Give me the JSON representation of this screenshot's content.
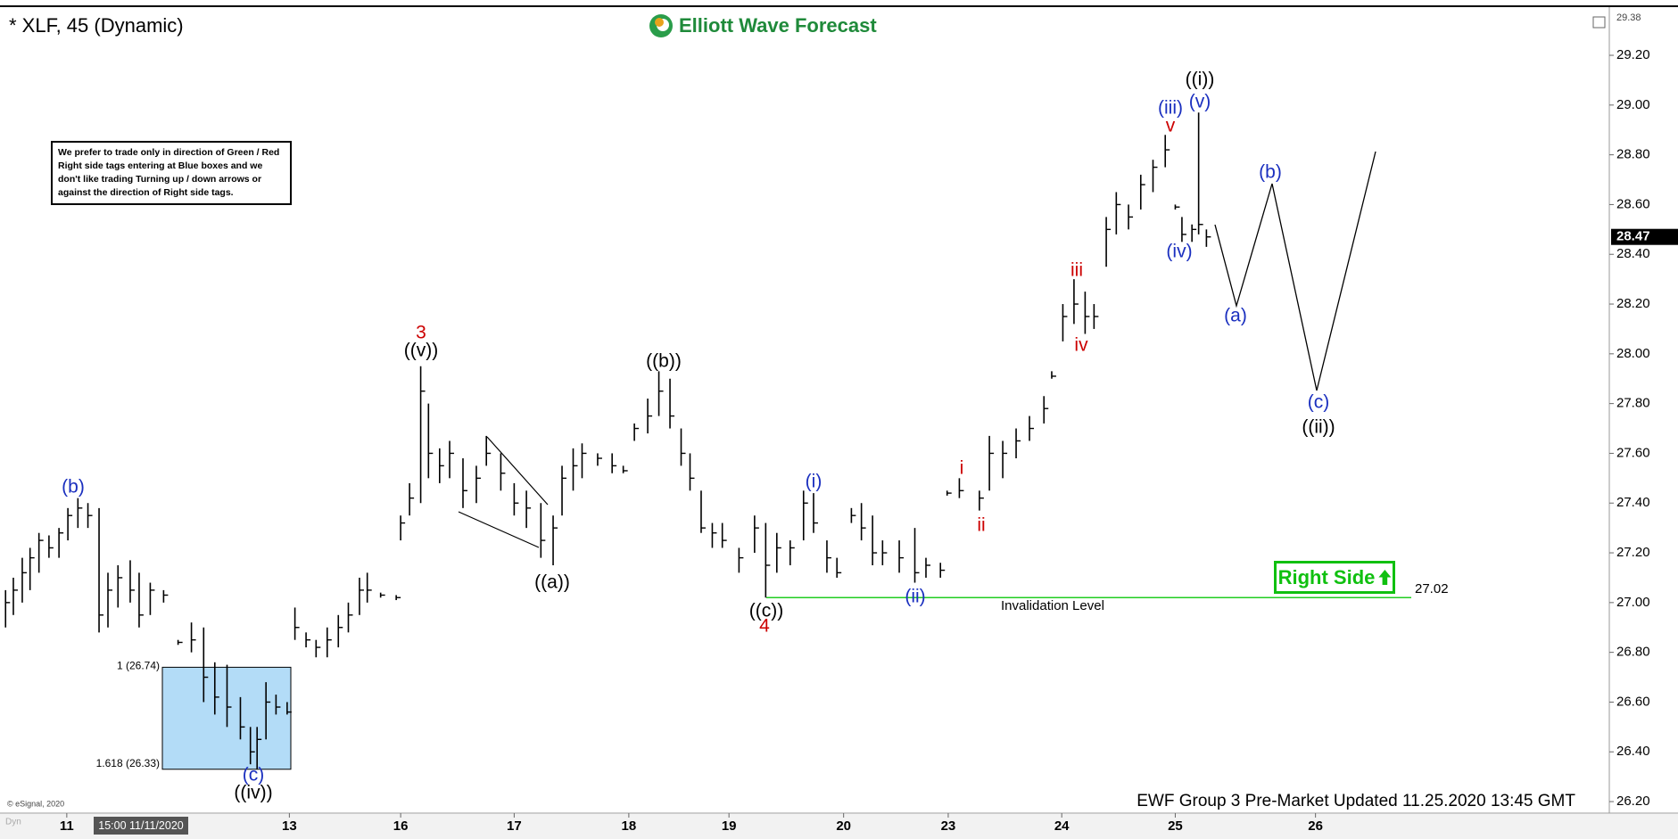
{
  "header": {
    "symbol": "* XLF, 45 (Dynamic)",
    "logo": "Elliott Wave Forecast"
  },
  "note": "We prefer to trade only in direction of Green / Red Right side tags entering at Blue boxes and we don't like trading Turning up / down arrows or against the direction of Right side tags.",
  "right_side_tag": "Right Side",
  "footer": {
    "update": "EWF Group 3 Pre-Market Updated 11.25.2020 13:45 GMT",
    "copyright": "© eSignal, 2020",
    "cursor_time": "15:00 11/11/2020",
    "mode": "Dyn"
  },
  "chart_data": {
    "type": "ohlc",
    "x": [
      -0.55,
      -0.48,
      -0.4,
      -0.33,
      -0.25,
      -0.16,
      -0.07,
      0.01,
      0.1,
      0.19,
      0.29,
      0.37,
      0.46,
      0.57,
      0.65,
      0.75,
      0.87,
      1.0,
      1.12,
      1.23,
      1.33,
      1.44,
      1.56,
      1.65,
      1.71,
      1.79,
      1.88,
      1.98,
      2.05,
      2.15,
      2.24,
      2.34,
      2.44,
      2.53,
      2.63,
      2.7,
      2.82,
      2.96,
      3.0,
      3.08,
      3.18,
      3.25,
      3.35,
      3.44,
      3.56,
      3.68,
      3.77,
      3.9,
      4.02,
      4.13,
      4.26,
      4.37,
      4.45,
      4.55,
      4.63,
      4.77,
      4.9,
      5.0,
      5.1,
      5.22,
      5.32,
      5.42,
      5.52,
      5.6,
      5.7,
      5.8,
      5.89,
      6.04,
      6.18,
      6.28,
      6.38,
      6.5,
      6.62,
      6.71,
      6.83,
      6.92,
      7.05,
      7.14,
      7.24,
      7.33,
      7.48,
      7.62,
      7.72,
      7.85,
      7.91,
      8.02,
      8.2,
      8.29,
      8.41,
      8.53,
      8.65,
      8.78,
      8.85,
      8.95,
      9.05,
      9.15,
      9.23,
      9.34,
      9.43,
      9.54,
      9.65,
      9.76,
      9.87,
      9.96,
      10.02,
      10.11,
      10.17,
      10.24
    ],
    "high": [
      27.05,
      27.1,
      27.18,
      27.22,
      27.28,
      27.27,
      27.3,
      27.38,
      27.42,
      27.4,
      27.38,
      27.12,
      27.15,
      27.17,
      27.12,
      27.08,
      27.05,
      26.85,
      26.92,
      26.9,
      26.76,
      26.75,
      26.62,
      26.5,
      26.5,
      26.68,
      26.63,
      26.6,
      26.98,
      26.88,
      26.85,
      26.9,
      26.95,
      27.0,
      27.1,
      27.12,
      27.04,
      27.03,
      27.35,
      27.48,
      27.95,
      27.8,
      27.62,
      27.65,
      27.58,
      27.55,
      27.67,
      27.6,
      27.48,
      27.45,
      27.4,
      27.35,
      27.55,
      27.62,
      27.64,
      27.6,
      27.6,
      27.55,
      27.72,
      27.82,
      27.93,
      27.9,
      27.7,
      27.6,
      27.45,
      27.32,
      27.32,
      27.22,
      27.35,
      27.32,
      27.28,
      27.25,
      27.45,
      27.44,
      27.25,
      27.18,
      27.38,
      27.4,
      27.35,
      27.25,
      27.25,
      27.3,
      27.18,
      27.16,
      27.45,
      27.5,
      27.45,
      27.67,
      27.65,
      27.7,
      27.75,
      27.83,
      27.93,
      28.2,
      28.3,
      28.25,
      28.2,
      28.55,
      28.65,
      28.6,
      28.72,
      28.78,
      28.88,
      28.6,
      28.55,
      28.52,
      28.97,
      28.5
    ],
    "low": [
      26.9,
      26.95,
      27.0,
      27.05,
      27.12,
      27.18,
      27.18,
      27.25,
      27.3,
      27.3,
      26.88,
      26.9,
      26.98,
      27.0,
      26.9,
      26.95,
      27.0,
      26.83,
      26.8,
      26.6,
      26.55,
      26.5,
      26.45,
      26.35,
      26.33,
      26.45,
      26.55,
      26.55,
      26.85,
      26.82,
      26.78,
      26.78,
      26.82,
      26.88,
      26.95,
      27.0,
      27.02,
      27.01,
      27.25,
      27.35,
      27.4,
      27.5,
      27.48,
      27.5,
      27.38,
      27.4,
      27.55,
      27.45,
      27.35,
      27.3,
      27.18,
      27.15,
      27.35,
      27.45,
      27.5,
      27.55,
      27.52,
      27.52,
      27.65,
      27.68,
      27.75,
      27.7,
      27.55,
      27.45,
      27.28,
      27.22,
      27.22,
      27.12,
      27.2,
      27.02,
      27.12,
      27.15,
      27.25,
      27.28,
      27.12,
      27.1,
      27.32,
      27.25,
      27.15,
      27.15,
      27.12,
      27.08,
      27.1,
      27.1,
      27.43,
      27.42,
      27.37,
      27.45,
      27.5,
      27.58,
      27.65,
      27.72,
      27.9,
      28.05,
      28.12,
      28.08,
      28.1,
      28.35,
      28.48,
      28.5,
      28.58,
      28.65,
      28.75,
      28.58,
      28.45,
      28.45,
      28.48,
      28.43
    ],
    "close": [
      27.0,
      27.05,
      27.12,
      27.18,
      27.25,
      27.22,
      27.28,
      27.35,
      27.38,
      27.35,
      26.95,
      27.05,
      27.1,
      27.05,
      26.95,
      27.05,
      27.03,
      26.84,
      26.85,
      26.7,
      26.62,
      26.58,
      26.5,
      26.4,
      26.45,
      26.6,
      26.58,
      26.56,
      26.9,
      26.85,
      26.82,
      26.85,
      26.9,
      26.95,
      27.05,
      27.05,
      27.03,
      27.02,
      27.32,
      27.42,
      27.85,
      27.6,
      27.55,
      27.6,
      27.45,
      27.5,
      27.6,
      27.52,
      27.4,
      27.38,
      27.25,
      27.3,
      27.5,
      27.55,
      27.6,
      27.58,
      27.55,
      27.53,
      27.7,
      27.75,
      27.85,
      27.75,
      27.6,
      27.5,
      27.3,
      27.28,
      27.25,
      27.18,
      27.3,
      27.15,
      27.22,
      27.22,
      27.4,
      27.32,
      27.18,
      27.12,
      27.35,
      27.3,
      27.2,
      27.2,
      27.18,
      27.12,
      27.15,
      27.13,
      27.44,
      27.45,
      27.42,
      27.6,
      27.6,
      27.65,
      27.7,
      27.78,
      27.91,
      28.15,
      28.2,
      28.15,
      28.15,
      28.5,
      28.6,
      28.55,
      28.68,
      28.75,
      28.82,
      28.59,
      28.48,
      28.5,
      28.52,
      28.47
    ],
    "color": "#000000",
    "xlim": [
      -0.6,
      13.86
    ],
    "xticks": [
      {
        "value": 0,
        "label": "11"
      },
      {
        "value": 2,
        "label": "13"
      },
      {
        "value": 3,
        "label": "16"
      },
      {
        "value": 4.02,
        "label": "17"
      },
      {
        "value": 5.05,
        "label": "18"
      },
      {
        "value": 5.95,
        "label": "19"
      },
      {
        "value": 6.98,
        "label": "20"
      },
      {
        "value": 7.92,
        "label": "23"
      },
      {
        "value": 8.94,
        "label": "24"
      },
      {
        "value": 9.96,
        "label": "25"
      },
      {
        "value": 11.22,
        "label": "26"
      }
    ],
    "ylim": [
      26.15,
      29.38
    ],
    "yticks": [
      {
        "value": 26.2,
        "label": "26.20"
      },
      {
        "value": 26.4,
        "label": "26.40"
      },
      {
        "value": 26.6,
        "label": "26.60"
      },
      {
        "value": 26.8,
        "label": "26.80"
      },
      {
        "value": 27.0,
        "label": "27.00"
      },
      {
        "value": 27.2,
        "label": "27.20"
      },
      {
        "value": 27.4,
        "label": "27.40"
      },
      {
        "value": 27.6,
        "label": "27.60"
      },
      {
        "value": 27.8,
        "label": "27.80"
      },
      {
        "value": 28.0,
        "label": "28.00"
      },
      {
        "value": 28.2,
        "label": "28.20"
      },
      {
        "value": 28.4,
        "label": "28.40"
      },
      {
        "value": 28.6,
        "label": "28.60"
      },
      {
        "value": 28.8,
        "label": "28.80"
      },
      {
        "value": 29.0,
        "label": "29.00"
      },
      {
        "value": 29.2,
        "label": "29.20"
      }
    ],
    "grid": false,
    "last_price": 28.47,
    "invalidation": {
      "value": 27.02,
      "label": "Invalidation Level",
      "color": "#22cc22"
    },
    "fib_box": {
      "top": 26.74,
      "bottom": 26.33,
      "top_label": "1 (26.74)",
      "bottom_label": "1.618 (26.33)",
      "color": "#b3dcf7"
    },
    "annotations": [
      {
        "text": "(b)",
        "color": "#1a2fbf"
      },
      {
        "text": "3",
        "color": "#cc0000"
      },
      {
        "text": "((v))",
        "color": "#000000"
      },
      {
        "text": "((a))",
        "color": "#000000"
      },
      {
        "text": "((b))",
        "color": "#000000"
      },
      {
        "text": "((c))",
        "color": "#000000"
      },
      {
        "text": "4",
        "color": "#cc0000"
      },
      {
        "text": "(i)",
        "color": "#1a2fbf"
      },
      {
        "text": "(ii)",
        "color": "#1a2fbf"
      },
      {
        "text": "i",
        "color": "#cc0000"
      },
      {
        "text": "ii",
        "color": "#cc0000"
      },
      {
        "text": "iii",
        "color": "#cc0000"
      },
      {
        "text": "iv",
        "color": "#cc0000"
      },
      {
        "text": "v",
        "color": "#cc0000"
      },
      {
        "text": "(iii)",
        "color": "#1a2fbf"
      },
      {
        "text": "(v)",
        "color": "#1a2fbf"
      },
      {
        "text": "((i))",
        "color": "#000000"
      },
      {
        "text": "(iv)",
        "color": "#1a2fbf"
      },
      {
        "text": "(a)",
        "color": "#1a2fbf"
      },
      {
        "text": "(b)",
        "color": "#1a2fbf"
      },
      {
        "text": "(c)",
        "color": "#1a2fbf"
      },
      {
        "text": "((ii))",
        "color": "#000000"
      },
      {
        "text": "(c)",
        "color": "#1a2fbf"
      },
      {
        "text": "((iv))",
        "color": "#000000"
      }
    ]
  }
}
